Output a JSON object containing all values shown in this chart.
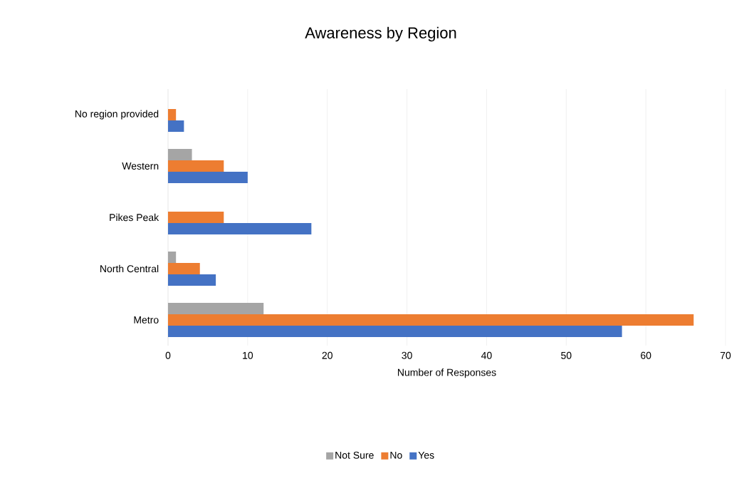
{
  "chart_data": {
    "type": "bar",
    "orientation": "horizontal",
    "title": "Awareness by Region",
    "xlabel": "Number of Responses",
    "categories": [
      "No region provided",
      "Western",
      "Pikes Peak",
      "North Central",
      "Metro"
    ],
    "series": [
      {
        "name": "Yes",
        "color": "#4472c4",
        "values": [
          2,
          10,
          18,
          6,
          57
        ]
      },
      {
        "name": "No",
        "color": "#ed7d31",
        "values": [
          1,
          7,
          7,
          4,
          66
        ]
      },
      {
        "name": "Not Sure",
        "color": "#a5a5a5",
        "values": [
          0,
          3,
          0,
          1,
          12
        ]
      }
    ],
    "xlim": [
      0,
      70
    ],
    "xticks": [
      0,
      10,
      20,
      30,
      40,
      50,
      60,
      70
    ],
    "grid": "x",
    "legend": "bottom"
  }
}
